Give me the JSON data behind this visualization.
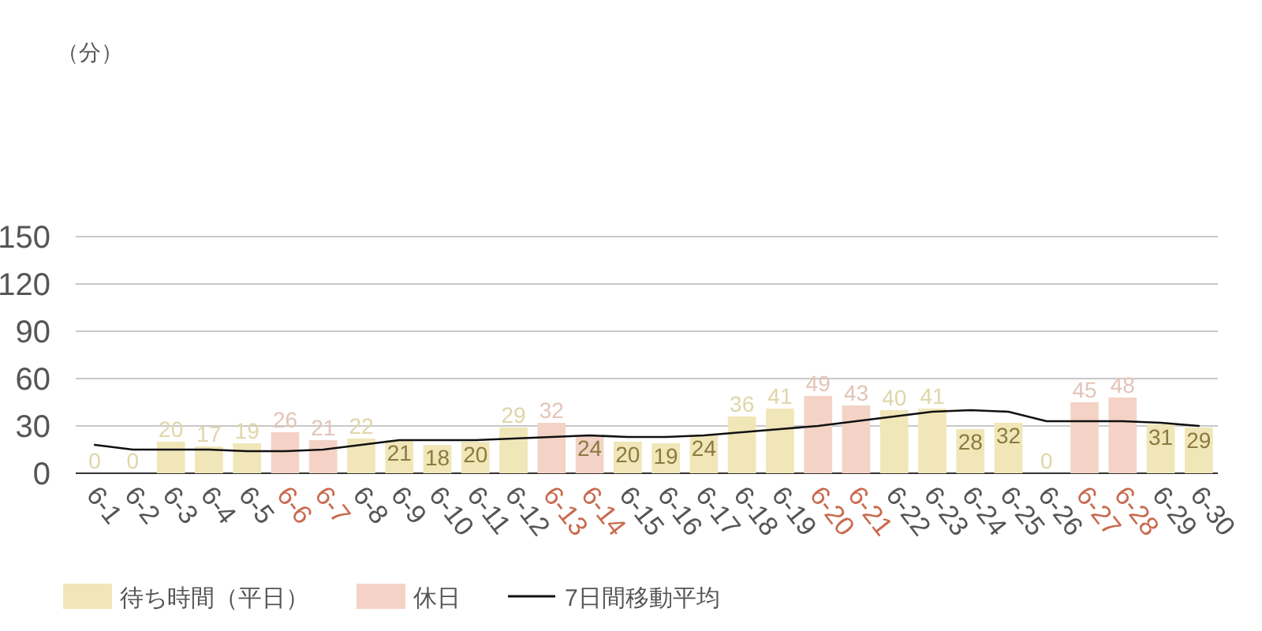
{
  "chart_data": {
    "type": "bar",
    "annotations": [
      "（分）"
    ],
    "ylim": [
      0,
      150
    ],
    "yticks": [
      0,
      30,
      60,
      90,
      120,
      150
    ],
    "grid": "y",
    "legend": "bottom left",
    "categories": [
      "6-1",
      "6-2",
      "6-3",
      "6-4",
      "6-5",
      "6-6",
      "6-7",
      "6-8",
      "6-9",
      "6-10",
      "6-11",
      "6-12",
      "6-13",
      "6-14",
      "6-15",
      "6-16",
      "6-17",
      "6-18",
      "6-19",
      "6-20",
      "6-21",
      "6-22",
      "6-23",
      "6-24",
      "6-25",
      "6-26",
      "6-27",
      "6-28",
      "6-29",
      "6-30"
    ],
    "series": [
      {
        "name": "待ち時間（平日）",
        "color": "#f0e6b8",
        "values": [
          0,
          0,
          20,
          17,
          19,
          null,
          null,
          22,
          21,
          18,
          20,
          29,
          null,
          null,
          20,
          19,
          24,
          36,
          41,
          null,
          null,
          40,
          41,
          28,
          32,
          0,
          null,
          null,
          31,
          29
        ],
        "value_labels": [
          "0",
          "0",
          "20",
          "17",
          "19",
          null,
          null,
          "22",
          "21",
          "18",
          "20",
          "29",
          null,
          null,
          "20",
          "19",
          "24",
          "36",
          "41",
          null,
          null,
          "40",
          "41",
          "28",
          "32",
          "0",
          null,
          null,
          "31",
          "29"
        ]
      },
      {
        "name": "休日",
        "color": "#f4d3c6",
        "values": [
          null,
          null,
          null,
          null,
          null,
          26,
          21,
          null,
          null,
          null,
          null,
          null,
          32,
          24,
          null,
          null,
          null,
          null,
          null,
          49,
          43,
          null,
          null,
          null,
          null,
          null,
          45,
          48,
          null,
          null
        ],
        "value_labels": [
          null,
          null,
          null,
          null,
          null,
          "26",
          "21",
          null,
          null,
          null,
          null,
          null,
          "32",
          "24",
          null,
          null,
          null,
          null,
          null,
          "49",
          "43",
          null,
          null,
          null,
          null,
          null,
          "45",
          "48",
          null,
          null
        ]
      },
      {
        "name": "7日間移動平均",
        "type": "line",
        "color": "#111111",
        "values": [
          18,
          15,
          15,
          15,
          14,
          14,
          15,
          18,
          21,
          21,
          21,
          22,
          23,
          24,
          23,
          23,
          24,
          26,
          28,
          30,
          33,
          36,
          39,
          40,
          39,
          33,
          33,
          33,
          32,
          30
        ]
      }
    ]
  }
}
